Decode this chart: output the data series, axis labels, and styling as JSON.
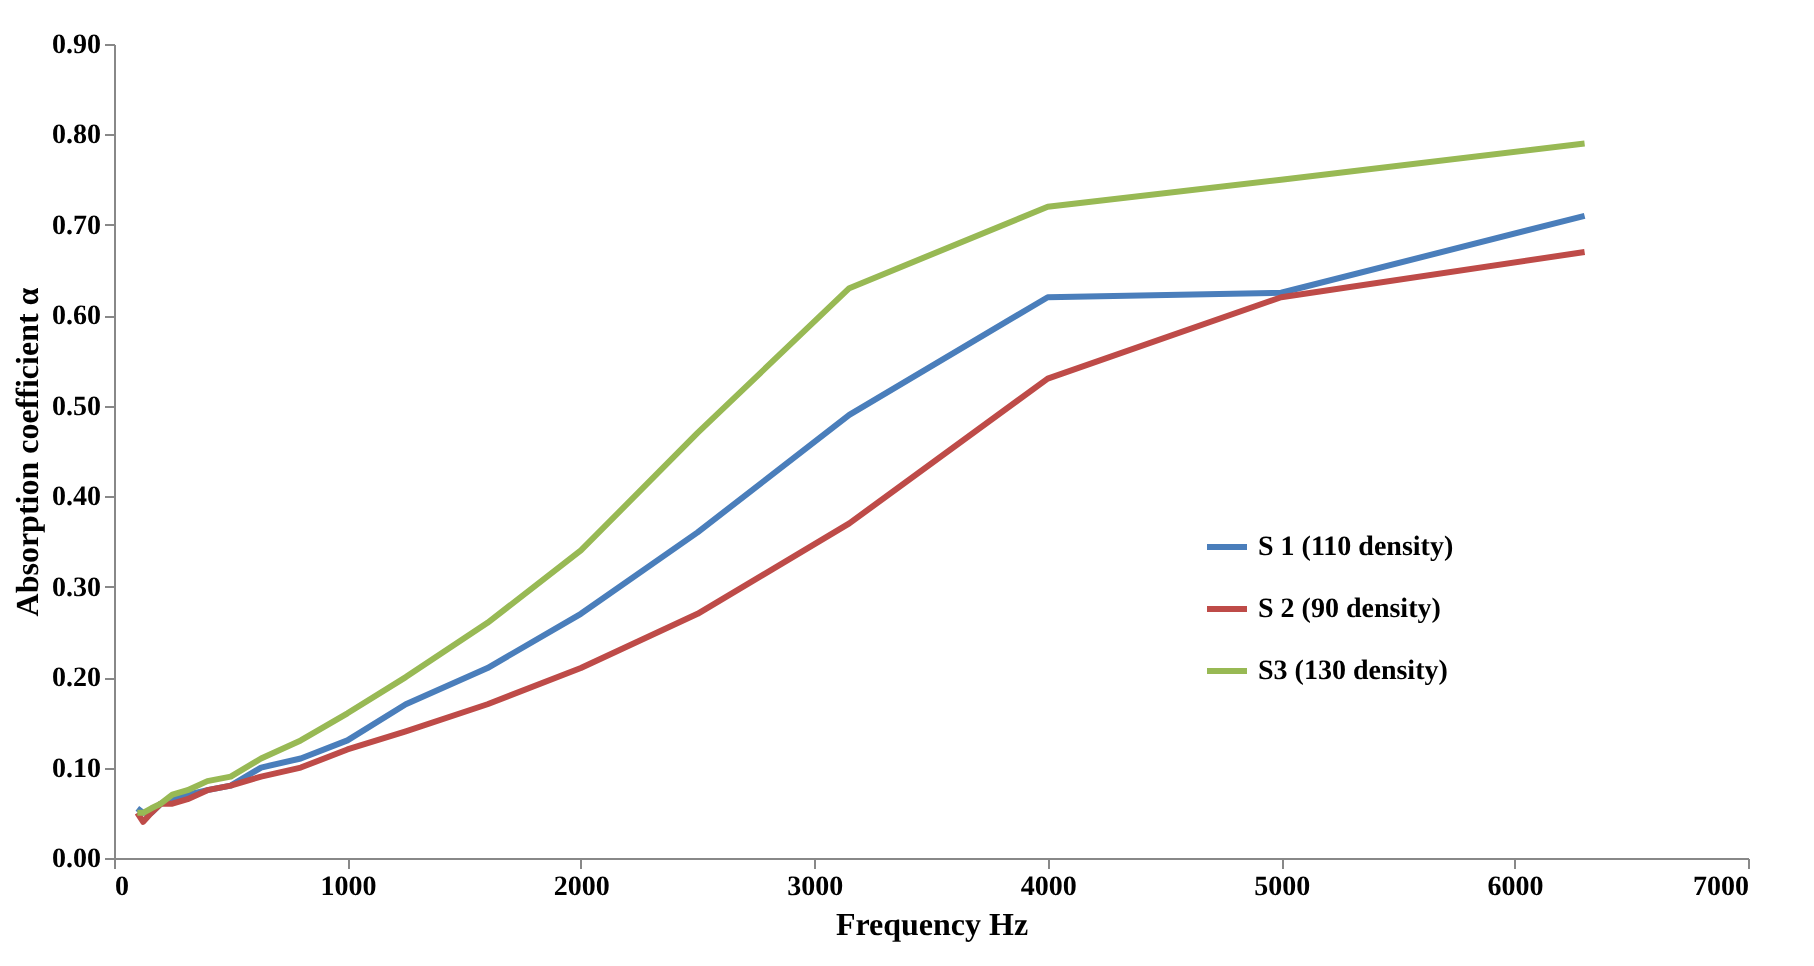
{
  "chart_data": {
    "type": "line",
    "xlabel": "Frequency Hz",
    "ylabel": "Absorption coefficient α",
    "x": [
      100,
      125,
      160,
      200,
      250,
      315,
      400,
      500,
      630,
      800,
      1000,
      1250,
      1600,
      2000,
      2500,
      3150,
      4000,
      5000,
      6300
    ],
    "series": [
      {
        "name": "S 1 (110 density)",
        "color": "#4a7ebb",
        "values": [
          0.055,
          0.05,
          0.05,
          0.06,
          0.065,
          0.07,
          0.075,
          0.08,
          0.1,
          0.11,
          0.13,
          0.17,
          0.21,
          0.27,
          0.36,
          0.49,
          0.62,
          0.625,
          0.71
        ]
      },
      {
        "name": "S 2 (90 density)",
        "color": "#be4b48",
        "values": [
          0.05,
          0.04,
          0.05,
          0.06,
          0.06,
          0.065,
          0.075,
          0.08,
          0.09,
          0.1,
          0.12,
          0.14,
          0.17,
          0.21,
          0.27,
          0.37,
          0.53,
          0.62,
          0.67
        ]
      },
      {
        "name": "S3 (130 density)",
        "color": "#98b954",
        "values": [
          0.05,
          0.05,
          0.055,
          0.06,
          0.07,
          0.075,
          0.085,
          0.09,
          0.11,
          0.13,
          0.16,
          0.2,
          0.26,
          0.34,
          0.47,
          0.63,
          0.72,
          0.75,
          0.79
        ]
      }
    ],
    "xlim": [
      0,
      7000
    ],
    "xticks": [
      0,
      1000,
      2000,
      3000,
      4000,
      5000,
      6000,
      7000
    ],
    "ylim": [
      0,
      0.9
    ],
    "yticks": [
      {
        "value": 0,
        "label": "0.00"
      },
      {
        "value": 0.1,
        "label": "0.10"
      },
      {
        "value": 0.2,
        "label": "0.20"
      },
      {
        "value": 0.3,
        "label": "0.30"
      },
      {
        "value": 0.4,
        "label": "0.40"
      },
      {
        "value": 0.5,
        "label": "0.50"
      },
      {
        "value": 0.6,
        "label": "0.60"
      },
      {
        "value": 0.7,
        "label": "0.70"
      },
      {
        "value": 0.8,
        "label": "0.80"
      },
      {
        "value": 0.9,
        "label": "0.90"
      }
    ],
    "grid": false,
    "legend": "right",
    "marker": "none",
    "line_style": "solid"
  }
}
